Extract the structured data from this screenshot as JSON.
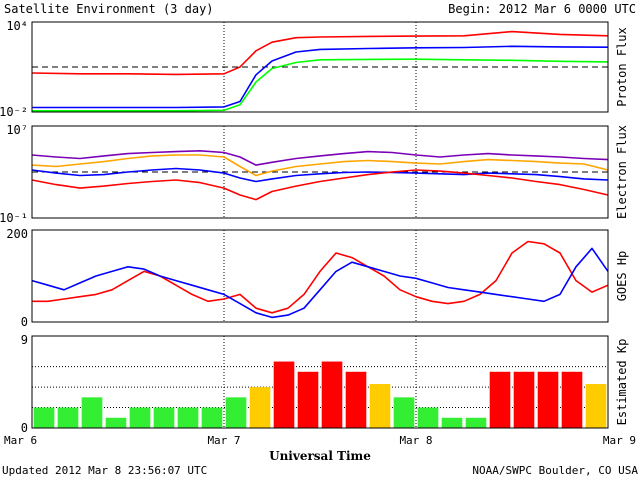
{
  "header": {
    "title": "Satellite Environment (3 day)",
    "begin": "Begin:  2012 Mar 6 0000 UTC"
  },
  "footer": {
    "updated": "Updated 2012 Mar  8 23:56:07 UTC",
    "source": "NOAA/SWPC Boulder, CO USA"
  },
  "colors": {
    "red": "#ff0000",
    "blue": "#0000ff",
    "green": "#00ff00",
    "purple": "#7a00b8",
    "orange": "#ffa500",
    "kp_green": "#33ee33",
    "kp_yellow": "#ffcc00",
    "kp_red": "#ff0000"
  },
  "chart_data": [
    {
      "type": "line",
      "ylabel": "Proton Flux",
      "ytick_labels": [
        "10⁴",
        "10⁻²"
      ],
      "yscale": "log",
      "ylim": [
        0.01,
        10000
      ],
      "threshold": 10,
      "x_hours": [
        0,
        6,
        12,
        18,
        24,
        26,
        28,
        30,
        33,
        36,
        42,
        48,
        54,
        60,
        66,
        72
      ],
      "series": [
        {
          "color": "red",
          "values": [
            4,
            3.5,
            3.5,
            3.2,
            3.5,
            10,
            120,
            450,
            900,
            1000,
            1100,
            1150,
            1200,
            2300,
            1500,
            1200
          ]
        },
        {
          "color": "blue",
          "values": [
            0.02,
            0.02,
            0.02,
            0.02,
            0.022,
            0.05,
            3,
            25,
            100,
            150,
            170,
            190,
            200,
            240,
            220,
            210
          ]
        },
        {
          "color": "green",
          "values": [
            0.012,
            0.012,
            0.012,
            0.012,
            0.013,
            0.03,
            1,
            8,
            20,
            30,
            32,
            33,
            30,
            28,
            24,
            22
          ]
        }
      ]
    },
    {
      "type": "line",
      "ylabel": "Electron Flux",
      "ytick_labels": [
        "10⁷",
        "10⁻¹"
      ],
      "yscale": "log",
      "ylim": [
        0.1,
        10000000
      ],
      "threshold": 1000,
      "x_hours": [
        0,
        3,
        6,
        9,
        12,
        15,
        18,
        21,
        24,
        26,
        28,
        30,
        33,
        36,
        39,
        42,
        45,
        48,
        51,
        54,
        57,
        60,
        63,
        66,
        69,
        72
      ],
      "series": [
        {
          "color": "purple",
          "values": [
            30000,
            20000,
            15000,
            25000,
            40000,
            50000,
            60000,
            70000,
            50000,
            20000,
            4000,
            7000,
            15000,
            25000,
            40000,
            60000,
            50000,
            30000,
            20000,
            30000,
            40000,
            30000,
            25000,
            20000,
            15000,
            12000
          ]
        },
        {
          "color": "orange",
          "values": [
            4000,
            3000,
            5000,
            8000,
            15000,
            25000,
            30000,
            30000,
            20000,
            3000,
            500,
            1200,
            3000,
            5000,
            8000,
            10000,
            8000,
            6000,
            5000,
            8000,
            12000,
            10000,
            8000,
            6000,
            5000,
            1500
          ]
        },
        {
          "color": "blue",
          "values": [
            1500,
            800,
            500,
            600,
            1000,
            1500,
            2000,
            1500,
            800,
            300,
            150,
            250,
            500,
            700,
            900,
            1000,
            900,
            800,
            700,
            600,
            800,
            700,
            600,
            400,
            250,
            200
          ]
        },
        {
          "color": "red",
          "values": [
            200,
            80,
            40,
            60,
            100,
            150,
            200,
            120,
            40,
            10,
            4,
            20,
            60,
            150,
            300,
            600,
            1000,
            1500,
            1200,
            800,
            500,
            300,
            150,
            80,
            30,
            10
          ]
        }
      ]
    },
    {
      "type": "line",
      "ylabel": "GOES Hp",
      "ytick_labels": [
        "200",
        "0"
      ],
      "ylim": [
        0,
        200
      ],
      "x_hours": [
        0,
        2,
        4,
        6,
        8,
        10,
        12,
        14,
        16,
        18,
        20,
        22,
        24,
        26,
        28,
        30,
        32,
        34,
        36,
        38,
        40,
        42,
        44,
        46,
        48,
        50,
        52,
        54,
        56,
        58,
        60,
        62,
        64,
        66,
        68,
        70,
        72
      ],
      "series": [
        {
          "color": "red",
          "values": [
            45,
            45,
            50,
            55,
            60,
            70,
            90,
            110,
            100,
            80,
            60,
            45,
            50,
            60,
            30,
            20,
            30,
            60,
            110,
            150,
            140,
            120,
            100,
            70,
            55,
            45,
            40,
            45,
            60,
            90,
            150,
            175,
            170,
            150,
            90,
            65,
            80
          ]
        },
        {
          "color": "blue",
          "values": [
            90,
            80,
            70,
            85,
            100,
            110,
            120,
            115,
            100,
            90,
            80,
            70,
            60,
            40,
            20,
            10,
            15,
            30,
            70,
            110,
            130,
            120,
            110,
            100,
            95,
            85,
            75,
            70,
            65,
            60,
            55,
            50,
            45,
            60,
            120,
            160,
            110
          ]
        }
      ]
    },
    {
      "type": "bar",
      "ylabel": "Estimated Kp",
      "ytick_labels": [
        "9",
        "0"
      ],
      "ylim": [
        0,
        9
      ],
      "gridlines": [
        2,
        4,
        6
      ],
      "x_hours": [
        1.5,
        4.5,
        7.5,
        10.5,
        13.5,
        16.5,
        19.5,
        22.5,
        25.5,
        28.5,
        31.5,
        34.5,
        37.5,
        40.5,
        43.5,
        46.5,
        49.5,
        52.5,
        55.5,
        58.5,
        61.5,
        64.5,
        67.5,
        70.5
      ],
      "values": [
        2,
        2,
        3,
        1,
        2,
        2,
        2,
        2,
        3,
        4,
        6.5,
        5.5,
        6.5,
        5.5,
        4.3,
        3,
        2,
        1,
        1,
        5.5,
        5.5,
        5.5,
        5.5,
        4.3
      ],
      "colors": [
        "kp_green",
        "kp_green",
        "kp_green",
        "kp_green",
        "kp_green",
        "kp_green",
        "kp_green",
        "kp_green",
        "kp_green",
        "kp_yellow",
        "kp_red",
        "kp_red",
        "kp_red",
        "kp_red",
        "kp_yellow",
        "kp_green",
        "kp_green",
        "kp_green",
        "kp_green",
        "kp_red",
        "kp_red",
        "kp_red",
        "kp_red",
        "kp_yellow"
      ]
    }
  ],
  "x_axis": {
    "label": "Universal Time",
    "ticks": [
      "Mar 6",
      "Mar 7",
      "Mar 8",
      "Mar 9"
    ],
    "xlim_hours": [
      0,
      72
    ]
  }
}
